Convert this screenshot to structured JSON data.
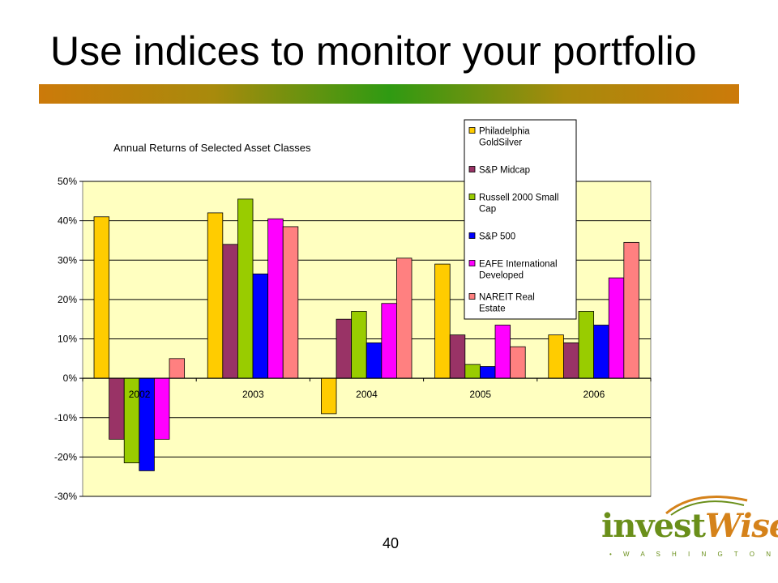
{
  "slide": {
    "title": "Use indices to monitor your portfolio",
    "page_number": "40"
  },
  "logo": {
    "main_a": "invest",
    "main_b": "Wise",
    "sub": "• W A S H I N G T O N •"
  },
  "colors": {
    "plot_background": "#ffffc0",
    "title_bar_gradient": [
      "#cc7a0a",
      "#2f9a12",
      "#cc7a0a"
    ]
  },
  "chart_data": {
    "type": "bar",
    "title": "Annual Returns of Selected Asset Classes",
    "xlabel": "",
    "ylabel": "",
    "categories": [
      "2002",
      "2003",
      "2004",
      "2005",
      "2006"
    ],
    "ylim": [
      -30,
      50
    ],
    "yticks": [
      50,
      40,
      30,
      20,
      10,
      0,
      -10,
      -20,
      -30
    ],
    "ytick_labels": [
      "50%",
      "40%",
      "30%",
      "20%",
      "10%",
      "0%",
      "-10%",
      "-20%",
      "-30%"
    ],
    "grid": true,
    "legend_position": "top-right",
    "series": [
      {
        "name": "Philadelphia GoldSilver",
        "legend_lines": [
          "Philadelphia",
          "GoldSilver"
        ],
        "color": "#ffcc00",
        "values": [
          41,
          42,
          -9,
          29,
          11
        ]
      },
      {
        "name": "S&P Midcap",
        "legend_lines": [
          "S&P Midcap"
        ],
        "color": "#993366",
        "values": [
          -15.5,
          34,
          15,
          11,
          9
        ]
      },
      {
        "name": "Russell 2000 Small Cap",
        "legend_lines": [
          "Russell 2000 Small",
          "Cap"
        ],
        "color": "#99cc00",
        "values": [
          -21.5,
          45.5,
          17,
          3.5,
          17
        ]
      },
      {
        "name": "S&P 500",
        "legend_lines": [
          "S&P 500"
        ],
        "color": "#0000ff",
        "values": [
          -23.5,
          26.5,
          9,
          3,
          13.5
        ]
      },
      {
        "name": "EAFE International Developed",
        "legend_lines": [
          "EAFE International",
          "Developed"
        ],
        "color": "#ff00ff",
        "values": [
          -15.5,
          40.5,
          19,
          13.5,
          25.5
        ]
      },
      {
        "name": "NAREIT Real Estate",
        "legend_lines": [
          "NAREIT Real",
          "Estate"
        ],
        "color": "#ff8080",
        "values": [
          5,
          38.5,
          30.5,
          8,
          34.5
        ]
      }
    ]
  }
}
